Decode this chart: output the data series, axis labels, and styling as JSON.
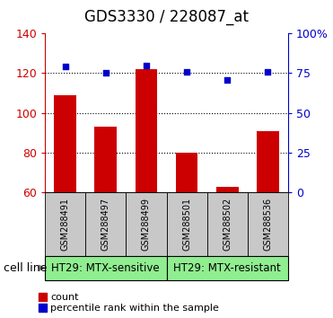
{
  "title": "GDS3330 / 228087_at",
  "samples": [
    "GSM288491",
    "GSM288497",
    "GSM288499",
    "GSM288501",
    "GSM288502",
    "GSM288536"
  ],
  "counts": [
    109,
    93,
    122,
    80,
    63,
    91
  ],
  "percentiles": [
    79,
    75,
    80,
    76,
    71,
    76
  ],
  "ylim_left": [
    60,
    140
  ],
  "ylim_right": [
    0,
    100
  ],
  "yticks_left": [
    60,
    80,
    100,
    120,
    140
  ],
  "yticks_right": [
    0,
    25,
    50,
    75,
    100
  ],
  "yticklabels_right": [
    "0",
    "25",
    "50",
    "75",
    "100%"
  ],
  "grid_lines": [
    80,
    100,
    120
  ],
  "bar_color": "#cc0000",
  "marker_color": "#0000cc",
  "bar_width": 0.55,
  "groups": [
    {
      "label": "HT29: MTX-sensitive",
      "indices": [
        0,
        1,
        2
      ],
      "color": "#90ee90"
    },
    {
      "label": "HT29: MTX-resistant",
      "indices": [
        3,
        4,
        5
      ],
      "color": "#90ee90"
    }
  ],
  "cell_line_label": "cell line",
  "legend_items": [
    {
      "label": "count",
      "color": "#cc0000"
    },
    {
      "label": "percentile rank within the sample",
      "color": "#0000cc"
    }
  ],
  "tick_label_bg": "#c8c8c8",
  "title_fontsize": 12,
  "tick_fontsize": 9,
  "sample_fontsize": 7,
  "group_fontsize": 8.5,
  "legend_fontsize": 8,
  "cell_line_fontsize": 9
}
